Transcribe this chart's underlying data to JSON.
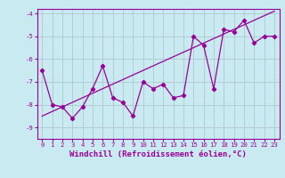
{
  "x": [
    0,
    1,
    2,
    3,
    4,
    5,
    6,
    7,
    8,
    9,
    10,
    11,
    12,
    13,
    14,
    15,
    16,
    17,
    18,
    19,
    20,
    21,
    22,
    23
  ],
  "y_data": [
    -6.5,
    -8.0,
    -8.1,
    -8.6,
    -8.1,
    -7.3,
    -6.3,
    -7.7,
    -7.9,
    -8.5,
    -7.0,
    -7.3,
    -7.1,
    -7.7,
    -7.6,
    -5.0,
    -5.4,
    -7.3,
    -4.7,
    -4.8,
    -4.3,
    -5.3,
    -5.0,
    -5.0
  ],
  "y_trend": [
    -8.5,
    -8.3,
    -8.1,
    -7.9,
    -7.7,
    -7.5,
    -7.3,
    -7.1,
    -6.9,
    -6.7,
    -6.5,
    -6.3,
    -6.1,
    -5.9,
    -5.7,
    -5.5,
    -5.3,
    -5.1,
    -4.9,
    -4.7,
    -4.5,
    -4.3,
    -4.1,
    -3.9
  ],
  "ylim": [
    -9.5,
    -3.8
  ],
  "xlim": [
    -0.5,
    23.5
  ],
  "yticks": [
    -9,
    -8,
    -7,
    -6,
    -5,
    -4
  ],
  "xticks": [
    0,
    1,
    2,
    3,
    4,
    5,
    6,
    7,
    8,
    9,
    10,
    11,
    12,
    13,
    14,
    15,
    16,
    17,
    18,
    19,
    20,
    21,
    22,
    23
  ],
  "xlabel": "Windchill (Refroidissement éolien,°C)",
  "line_color": "#990099",
  "background_color": "#c8eaf0",
  "grid_color": "#b0c8d0",
  "tick_fontsize": 5.2,
  "xlabel_fontsize": 6.5
}
